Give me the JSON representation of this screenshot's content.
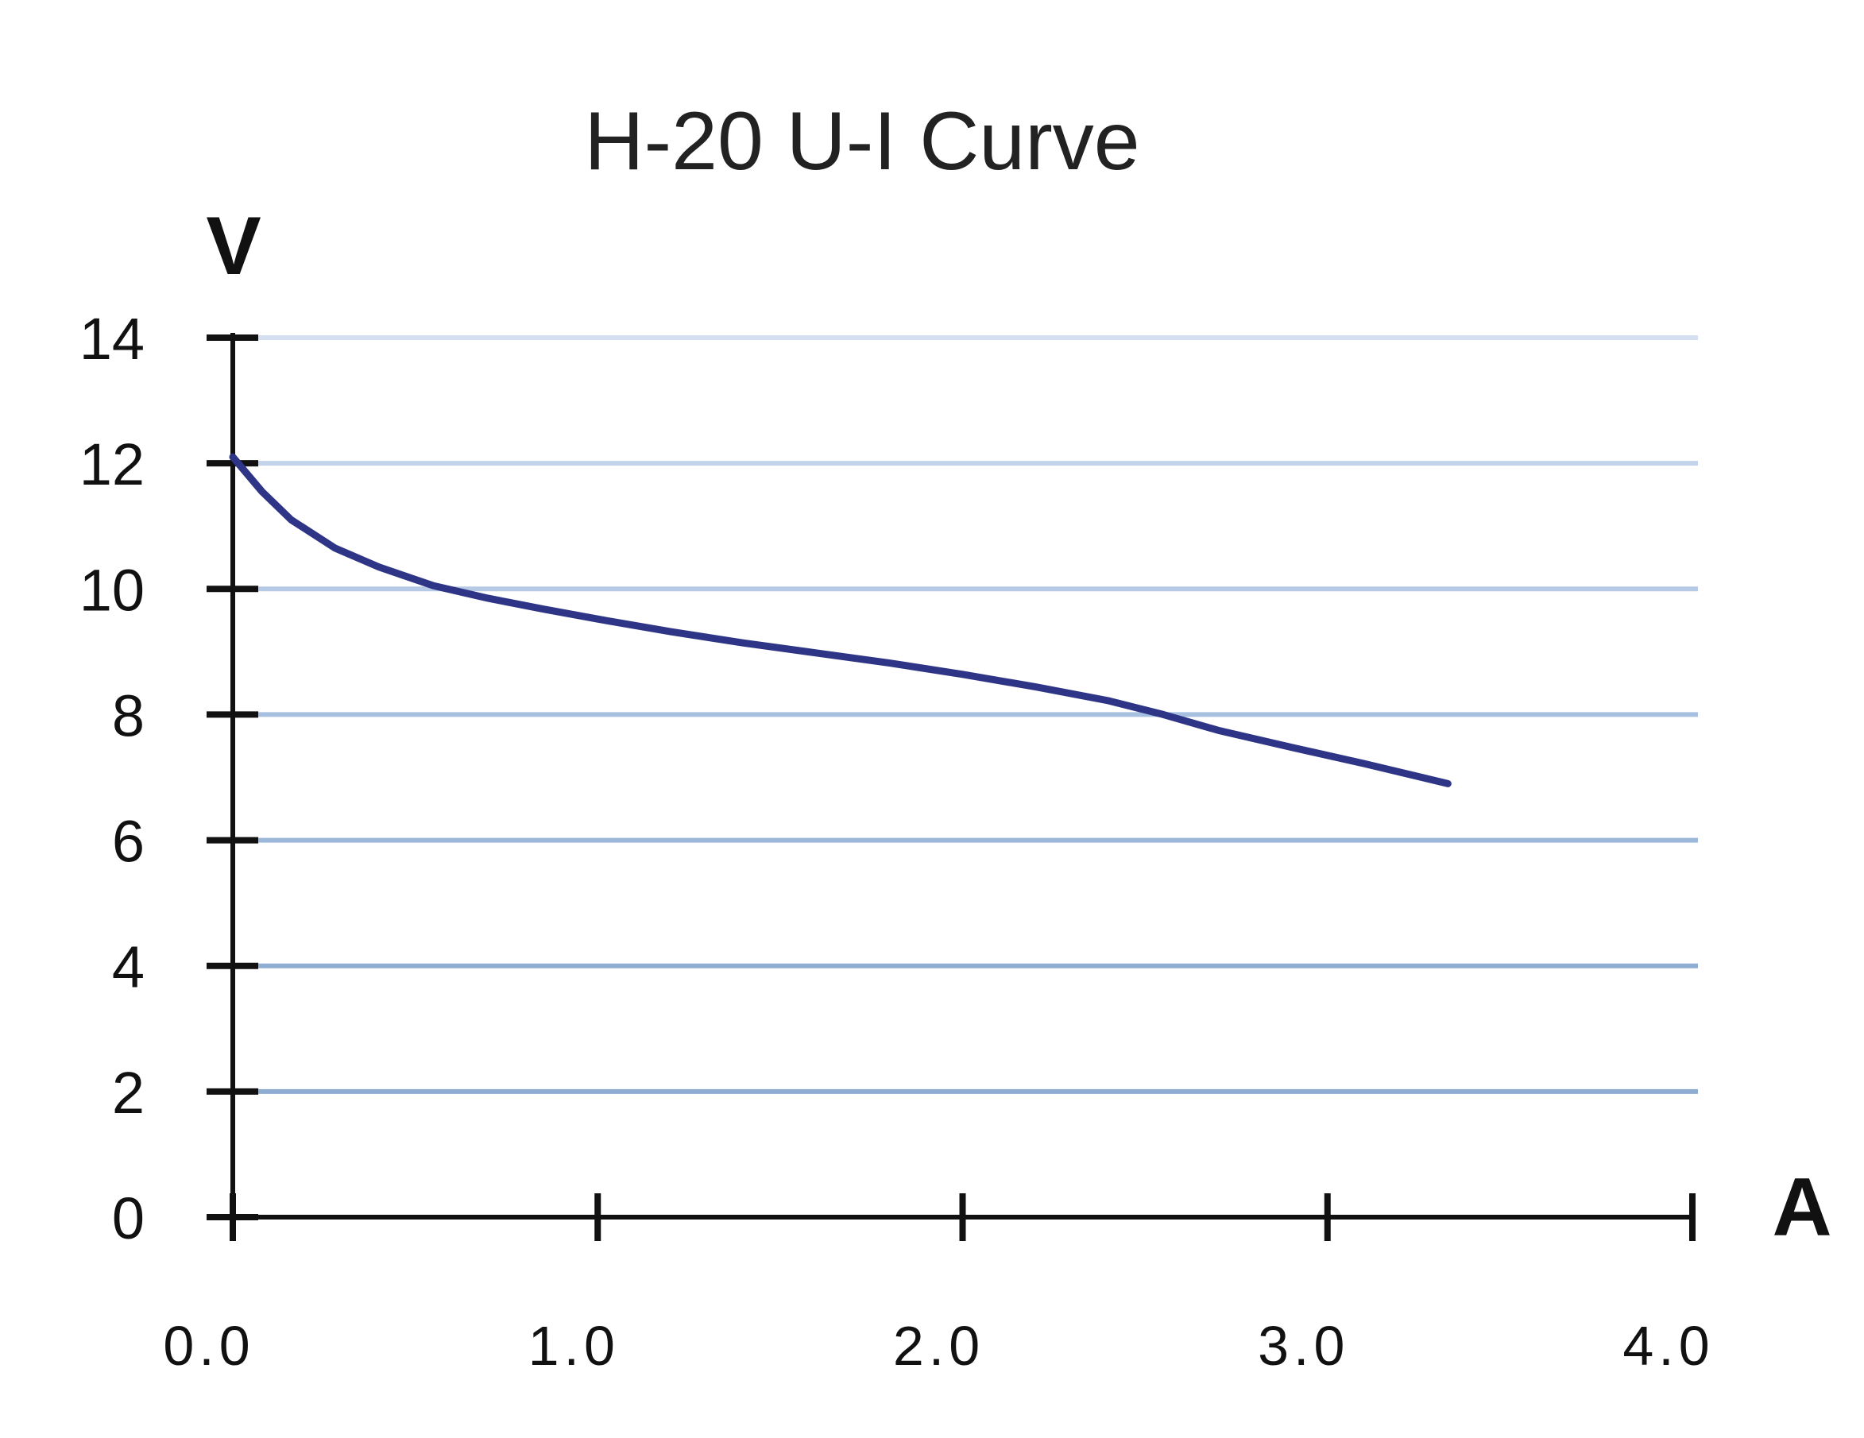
{
  "chart_data": {
    "type": "line",
    "title": "H-20 U-I Curve",
    "xlabel": "A",
    "ylabel": "V",
    "xlim": [
      0,
      4
    ],
    "ylim": [
      0,
      14
    ],
    "x_ticks": [
      "0.0",
      "1.0",
      "2.0",
      "3.0",
      "4.0"
    ],
    "y_ticks": [
      "0",
      "2",
      "4",
      "6",
      "8",
      "10",
      "12",
      "14"
    ],
    "grid": true,
    "grid_colors": [
      "#8fadd3",
      "#8fadd3",
      "#9bb7da",
      "#a8c0e0",
      "#b6cae6",
      "#c3d3ea",
      "#d4e0f1"
    ],
    "line_color": "#2e3586",
    "series": [
      {
        "x": [
          0.0,
          0.08,
          0.16,
          0.28,
          0.4,
          0.55,
          0.7,
          0.85,
          1.0,
          1.2,
          1.4,
          1.6,
          1.8,
          2.0,
          2.2,
          2.4,
          2.55,
          2.7,
          2.9,
          3.1,
          3.33
        ],
        "y": [
          12.1,
          11.55,
          11.1,
          10.65,
          10.35,
          10.05,
          9.85,
          9.68,
          9.52,
          9.32,
          9.14,
          8.98,
          8.82,
          8.64,
          8.44,
          8.22,
          8.0,
          7.75,
          7.48,
          7.22,
          6.9
        ]
      }
    ]
  }
}
